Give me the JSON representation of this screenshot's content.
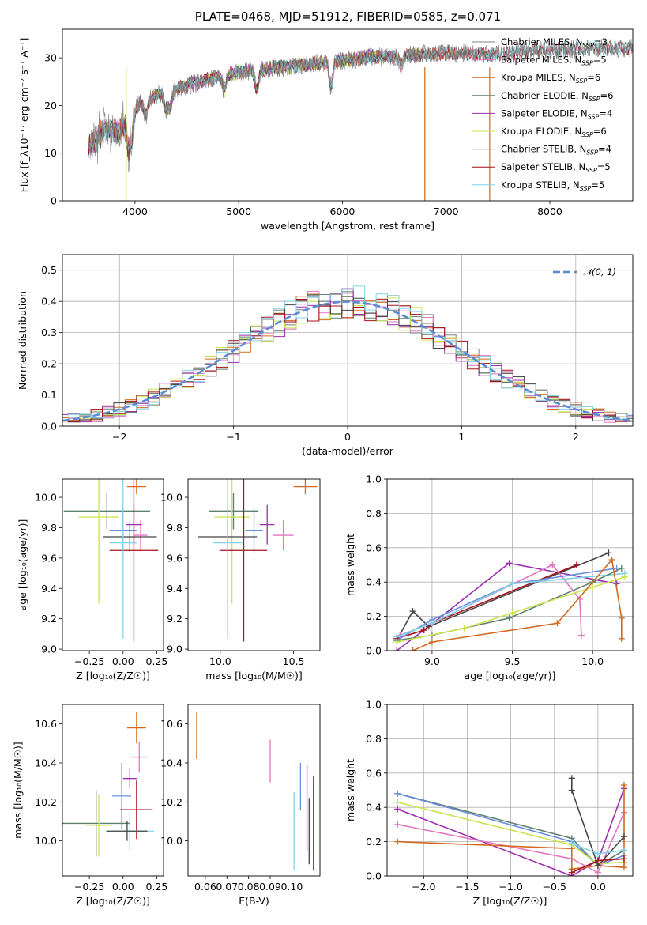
{
  "title": "PLATE=0468, MJD=51912, FIBERID=0585, z=0.071",
  "colors": {
    "Chabrier MILES": "#7f7f7f",
    "Salpeter MILES": "#e377c2",
    "Kroupa MILES": "#d2691e",
    "Chabrier ELODIE": "#5f7f6f",
    "Salpeter ELODIE": "#9b2fae",
    "Kroupa ELODIE": "#c8e64b",
    "Chabrier STELIB": "#444444",
    "Salpeter STELIB": "#a8101a",
    "Kroupa STELIB": "#7fd4e8",
    "extra_blue": "#6a8fe0",
    "gauss": "#5b8bd6"
  },
  "chart_data": [
    {
      "id": "spectrum",
      "type": "line",
      "xlabel": "wavelength [Angstrom, rest frame]",
      "ylabel": "Flux [f_λ10⁻¹⁷ erg cm⁻² s⁻¹ A⁻¹]",
      "xlim": [
        3300,
        8800
      ],
      "ylim": [
        0,
        36
      ],
      "xticks": [
        4000,
        5000,
        6000,
        7000,
        8000
      ],
      "yticks": [
        0,
        10,
        20,
        30
      ],
      "continuum": [
        [
          3550,
          11
        ],
        [
          3700,
          15
        ],
        [
          3850,
          14.5
        ],
        [
          3950,
          18
        ],
        [
          4050,
          20.5
        ],
        [
          4200,
          22
        ],
        [
          4400,
          23.5
        ],
        [
          4700,
          25.5
        ],
        [
          5000,
          27
        ],
        [
          5400,
          28
        ],
        [
          5800,
          29
        ],
        [
          6200,
          30
        ],
        [
          6600,
          30.5
        ],
        [
          7000,
          31
        ],
        [
          7400,
          30.8
        ],
        [
          7800,
          31.5
        ],
        [
          8200,
          31.8
        ],
        [
          8600,
          32
        ]
      ],
      "legend": [
        {
          "name": "Chabrier MILES, N_SSP=3"
        },
        {
          "name": "Salpeter MILES, N_SSP=5"
        },
        {
          "name": "Kroupa MILES, N_SSP=6"
        },
        {
          "name": "Chabrier ELODIE, N_SSP=6"
        },
        {
          "name": "Salpeter ELODIE, N_SSP=4"
        },
        {
          "name": "Kroupa ELODIE, N_SSP=6"
        },
        {
          "name": "Chabrier STELIB, N_SSP=4"
        },
        {
          "name": "Salpeter STELIB, N_SSP=5"
        },
        {
          "name": "Kroupa STELIB, N_SSP=5"
        }
      ],
      "legend_location": "right"
    },
    {
      "id": "residuals",
      "type": "line",
      "xlabel": "(data-model)/error",
      "ylabel": "Normed distribution",
      "xlim": [
        -2.5,
        2.5
      ],
      "ylim": [
        0,
        0.55
      ],
      "xticks": [
        -2,
        -1,
        0,
        1,
        2
      ],
      "yticks": [
        0.0,
        0.1,
        0.2,
        0.3,
        0.4,
        0.5
      ],
      "legend": [
        {
          "name": "𝒩(0, 1)"
        }
      ],
      "legend_location": "top-right",
      "grid": true
    },
    {
      "id": "age_vs_Z",
      "type": "scatter",
      "xlabel": "Z [log₁₀(Z/Z☉)]",
      "ylabel": "age  [log₁₀(age/yr)]",
      "xlim": [
        -0.45,
        0.3
      ],
      "ylim": [
        8.99,
        10.12
      ],
      "xticks": [
        -0.25,
        0.0,
        0.25
      ],
      "yticks": [
        9.0,
        9.2,
        9.4,
        9.6,
        9.8,
        10.0
      ],
      "points": [
        {
          "model": "Kroupa MILES",
          "x": 0.1,
          "y": 10.07,
          "xe": 0.07,
          "ye": 0.05
        },
        {
          "model": "Salpeter MILES",
          "x": 0.13,
          "y": 9.75,
          "xe": 0.05,
          "ye": 0.1
        },
        {
          "model": "Salpeter ELODIE",
          "x": 0.08,
          "y": 9.82,
          "xe": 0.06,
          "ye": 0.13
        },
        {
          "model": "Chabrier ELODIE",
          "x": -0.12,
          "y": 9.91,
          "xe": 0.32,
          "ye": 0.12
        },
        {
          "model": "Kroupa ELODIE",
          "x": -0.18,
          "y": 9.87,
          "xe": 0.15,
          "ye": 0.57
        },
        {
          "model": "extra_blue",
          "x": 0.0,
          "y": 9.78,
          "xe": 0.1,
          "ye": 0.15
        },
        {
          "model": "Chabrier STELIB",
          "x": 0.05,
          "y": 9.74,
          "xe": 0.2,
          "ye": 0.1
        },
        {
          "model": "Salpeter STELIB",
          "x": 0.08,
          "y": 9.65,
          "xe": 0.18,
          "ye": 0.6
        },
        {
          "model": "Kroupa STELIB",
          "x": 0.0,
          "y": 9.7,
          "xe": 0.1,
          "ye": 0.63
        }
      ]
    },
    {
      "id": "age_vs_mass",
      "type": "scatter",
      "xlabel": "mass [log₁₀(M/M☉)]",
      "ylabel": "",
      "xlim": [
        9.78,
        10.68
      ],
      "ylim": [
        8.99,
        10.12
      ],
      "xticks": [
        10.0,
        10.5
      ],
      "yticks": [
        9.0,
        9.2,
        9.4,
        9.6,
        9.8,
        10.0
      ],
      "points": [
        {
          "model": "Kroupa MILES",
          "x": 10.58,
          "y": 10.07,
          "xe": 0.08,
          "ye": 0.05
        },
        {
          "model": "Salpeter MILES",
          "x": 10.43,
          "y": 9.75,
          "xe": 0.07,
          "ye": 0.1
        },
        {
          "model": "Salpeter ELODIE",
          "x": 10.32,
          "y": 9.82,
          "xe": 0.05,
          "ye": 0.13
        },
        {
          "model": "Chabrier ELODIE",
          "x": 10.09,
          "y": 9.91,
          "xe": 0.17,
          "ye": 0.12
        },
        {
          "model": "Kroupa ELODIE",
          "x": 10.08,
          "y": 9.87,
          "xe": 0.12,
          "ye": 0.57
        },
        {
          "model": "extra_blue",
          "x": 10.23,
          "y": 9.78,
          "xe": 0.06,
          "ye": 0.15
        },
        {
          "model": "Chabrier STELIB",
          "x": 10.05,
          "y": 9.74,
          "xe": 0.2,
          "ye": 0.1
        },
        {
          "model": "Salpeter STELIB",
          "x": 10.16,
          "y": 9.65,
          "xe": 0.16,
          "ye": 0.6
        },
        {
          "model": "Kroupa STELIB",
          "x": 10.05,
          "y": 9.7,
          "xe": 0.1,
          "ye": 0.63
        }
      ]
    },
    {
      "id": "weight_vs_age",
      "type": "line",
      "xlabel": "age  [log₁₀(age/yr)]",
      "ylabel": "mass weight",
      "xlim": [
        8.72,
        10.25
      ],
      "ylim": [
        0,
        1
      ],
      "xticks": [
        9.0,
        9.5,
        10.0
      ],
      "yticks": [
        0.0,
        0.2,
        0.4,
        0.6,
        0.8,
        1.0
      ],
      "grid": true,
      "series": [
        {
          "model": "Salpeter ELODIE",
          "points": [
            [
              8.78,
              0.0
            ],
            [
              8.95,
              0.12
            ],
            [
              9.48,
              0.51
            ],
            [
              10.15,
              0.39
            ]
          ]
        },
        {
          "model": "Chabrier STELIB",
          "points": [
            [
              8.78,
              0.06
            ],
            [
              8.88,
              0.23
            ],
            [
              8.98,
              0.14
            ],
            [
              10.1,
              0.57
            ]
          ]
        },
        {
          "model": "Salpeter STELIB",
          "points": [
            [
              8.78,
              0.07
            ],
            [
              8.95,
              0.12
            ],
            [
              9.0,
              0.16
            ],
            [
              9.9,
              0.5
            ]
          ]
        },
        {
          "model": "Salpeter MILES",
          "points": [
            [
              8.8,
              0.09
            ],
            [
              9.0,
              0.16
            ],
            [
              9.75,
              0.5
            ],
            [
              9.92,
              0.3
            ],
            [
              9.93,
              0.09
            ]
          ]
        },
        {
          "model": "extra_blue",
          "points": [
            [
              8.78,
              0.06
            ],
            [
              9.0,
              0.18
            ],
            [
              9.5,
              0.39
            ],
            [
              10.15,
              0.48
            ]
          ]
        },
        {
          "model": "Kroupa STELIB",
          "points": [
            [
              8.78,
              0.08
            ],
            [
              9.0,
              0.16
            ],
            [
              9.5,
              0.39
            ],
            [
              10.2,
              0.45
            ]
          ]
        },
        {
          "model": "Chabrier ELODIE",
          "points": [
            [
              8.78,
              0.06
            ],
            [
              9.0,
              0.09
            ],
            [
              9.48,
              0.19
            ],
            [
              10.0,
              0.4
            ],
            [
              10.18,
              0.48
            ]
          ]
        },
        {
          "model": "Kroupa ELODIE",
          "points": [
            [
              8.78,
              0.05
            ],
            [
              9.2,
              0.13
            ],
            [
              9.5,
              0.22
            ],
            [
              10.0,
              0.37
            ],
            [
              10.2,
              0.43
            ]
          ]
        },
        {
          "model": "Kroupa MILES",
          "points": [
            [
              8.88,
              0.0
            ],
            [
              9.0,
              0.05
            ],
            [
              9.78,
              0.16
            ],
            [
              10.12,
              0.53
            ],
            [
              10.18,
              0.19
            ],
            [
              10.18,
              0.07
            ]
          ]
        }
      ]
    },
    {
      "id": "mass_vs_Z",
      "type": "scatter",
      "xlabel": "Z [log₁₀(Z/Z☉)]",
      "ylabel": "mass [log₁₀(M/M☉)]",
      "xlim": [
        -0.45,
        0.3
      ],
      "ylim": [
        9.82,
        10.7
      ],
      "xticks": [
        -0.25,
        0.0,
        0.25
      ],
      "yticks": [
        10.0,
        10.2,
        10.4,
        10.6
      ],
      "points": [
        {
          "model": "Kroupa MILES",
          "x": 0.1,
          "y": 10.58,
          "xe": 0.07,
          "ye": 0.08
        },
        {
          "model": "Salpeter MILES",
          "x": 0.12,
          "y": 10.43,
          "xe": 0.06,
          "ye": 0.08
        },
        {
          "model": "Salpeter ELODIE",
          "x": 0.05,
          "y": 10.32,
          "xe": 0.05,
          "ye": 0.05
        },
        {
          "model": "extra_blue",
          "x": -0.01,
          "y": 10.23,
          "xe": 0.07,
          "ye": 0.17
        },
        {
          "model": "Salpeter STELIB",
          "x": 0.1,
          "y": 10.16,
          "xe": 0.12,
          "ye": 0.15
        },
        {
          "model": "Chabrier ELODIE",
          "x": -0.2,
          "y": 10.09,
          "xe": 0.25,
          "ye": 0.17
        },
        {
          "model": "Kroupa ELODIE",
          "x": -0.18,
          "y": 10.08,
          "xe": 0.1,
          "ye": 0.16
        },
        {
          "model": "Kroupa STELIB",
          "x": 0.05,
          "y": 10.05,
          "xe": 0.18,
          "ye": 0.1
        },
        {
          "model": "Chabrier STELIB",
          "x": 0.03,
          "y": 10.05,
          "xe": 0.15,
          "ye": 0.05
        }
      ]
    },
    {
      "id": "mass_vs_ebv",
      "type": "scatter",
      "xlabel": "E(B-V)",
      "ylabel": "",
      "xlim": [
        0.052,
        0.113
      ],
      "ylim": [
        9.82,
        10.7
      ],
      "xticks": [
        0.06,
        0.07,
        0.08,
        0.09,
        0.1
      ],
      "yticks": [
        10.0,
        10.2,
        10.4,
        10.6
      ],
      "points": [
        {
          "model": "Kroupa MILES",
          "x": 0.056,
          "y": 10.54,
          "ye": 0.12
        },
        {
          "model": "Salpeter MILES",
          "x": 0.09,
          "y": 10.41,
          "ye": 0.11
        },
        {
          "model": "extra_blue",
          "x": 0.104,
          "y": 10.28,
          "ye": 0.12
        },
        {
          "model": "Kroupa STELIB",
          "x": 0.101,
          "y": 10.05,
          "ye": 0.2
        },
        {
          "model": "Salpeter ELODIE",
          "x": 0.107,
          "y": 10.17,
          "ye": 0.22
        },
        {
          "model": "Chabrier STELIB",
          "x": 0.108,
          "y": 10.05,
          "ye": 0.17
        },
        {
          "model": "Salpeter STELIB",
          "x": 0.11,
          "y": 10.09,
          "ye": 0.24
        }
      ]
    },
    {
      "id": "weight_vs_Z",
      "type": "line",
      "xlabel": "Z [log₁₀(Z/Z☉)]",
      "ylabel": "mass weight",
      "xlim": [
        -2.42,
        0.4
      ],
      "ylim": [
        0,
        1
      ],
      "xticks": [
        -2.0,
        -1.5,
        -1.0,
        -0.5,
        0.0
      ],
      "yticks": [
        0.0,
        0.2,
        0.4,
        0.6,
        0.8,
        1.0
      ],
      "grid": true,
      "series": [
        {
          "model": "Chabrier ELODIE",
          "points": [
            [
              -2.3,
              0.48
            ],
            [
              -0.3,
              0.22
            ],
            [
              0.0,
              0.06
            ],
            [
              0.3,
              0.15
            ]
          ]
        },
        {
          "model": "extra_blue",
          "points": [
            [
              -2.3,
              0.48
            ],
            [
              -0.3,
              0.2
            ],
            [
              0.0,
              0.06
            ],
            [
              0.3,
              0.12
            ]
          ]
        },
        {
          "model": "Kroupa ELODIE",
          "points": [
            [
              -2.3,
              0.43
            ],
            [
              -0.3,
              0.18
            ],
            [
              0.0,
              0.07
            ],
            [
              0.3,
              0.08
            ]
          ]
        },
        {
          "model": "Salpeter ELODIE",
          "points": [
            [
              -2.3,
              0.39
            ],
            [
              -0.3,
              0.0
            ],
            [
              0.0,
              0.09
            ],
            [
              0.3,
              0.51
            ]
          ]
        },
        {
          "model": "Salpeter MILES",
          "points": [
            [
              -2.3,
              0.3
            ],
            [
              -0.3,
              0.1
            ],
            [
              0.0,
              0.02
            ],
            [
              0.3,
              0.37
            ]
          ]
        },
        {
          "model": "Kroupa MILES",
          "points": [
            [
              -2.3,
              0.2
            ],
            [
              -0.3,
              0.16
            ],
            [
              -0.3,
              0.04
            ],
            [
              0.0,
              0.06
            ],
            [
              0.3,
              0.05
            ],
            [
              0.3,
              0.53
            ]
          ]
        },
        {
          "model": "Chabrier STELIB",
          "points": [
            [
              -0.3,
              0.57
            ],
            [
              -0.3,
              0.5
            ],
            [
              0.0,
              0.06
            ],
            [
              0.3,
              0.23
            ]
          ]
        },
        {
          "model": "Kroupa STELIB",
          "points": [
            [
              -0.3,
              0.19
            ],
            [
              0.0,
              0.13
            ],
            [
              0.3,
              0.15
            ]
          ]
        },
        {
          "model": "Salpeter STELIB",
          "points": [
            [
              -0.3,
              0.02
            ],
            [
              0.0,
              0.09
            ],
            [
              0.3,
              0.1
            ]
          ]
        }
      ]
    }
  ]
}
